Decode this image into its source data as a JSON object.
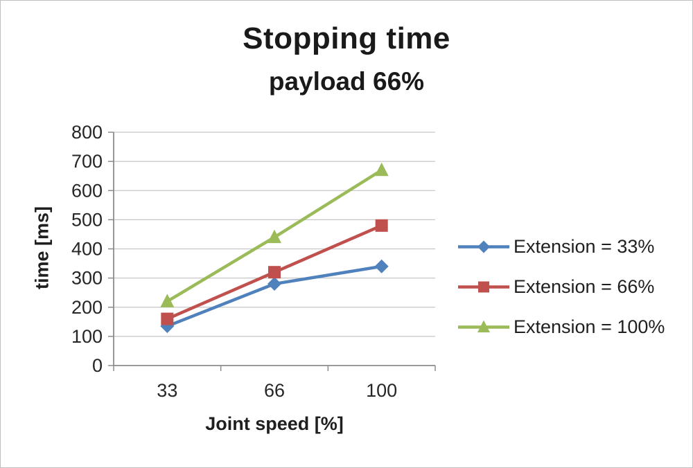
{
  "chart_data": {
    "type": "line",
    "title": "Stopping time",
    "subtitle": "payload 66%",
    "xlabel": "Joint speed [%]",
    "ylabel": "time [ms]",
    "categories": [
      "33",
      "66",
      "100"
    ],
    "series": [
      {
        "name": "Extension = 33%",
        "color": "#4F81BD",
        "marker": "diamond",
        "values": [
          135,
          280,
          340
        ]
      },
      {
        "name": "Extension = 66%",
        "color": "#C0504D",
        "marker": "square",
        "values": [
          160,
          320,
          480
        ]
      },
      {
        "name": "Extension = 100%",
        "color": "#9BBB59",
        "marker": "triangle",
        "values": [
          220,
          440,
          670
        ]
      }
    ],
    "ylim": [
      0,
      800
    ],
    "ytick_step": 100,
    "grid": true,
    "legend_position": "right",
    "colors": {
      "gridline": "#c6c6c6",
      "axis": "#8c8c8c",
      "text": "#262626"
    }
  }
}
